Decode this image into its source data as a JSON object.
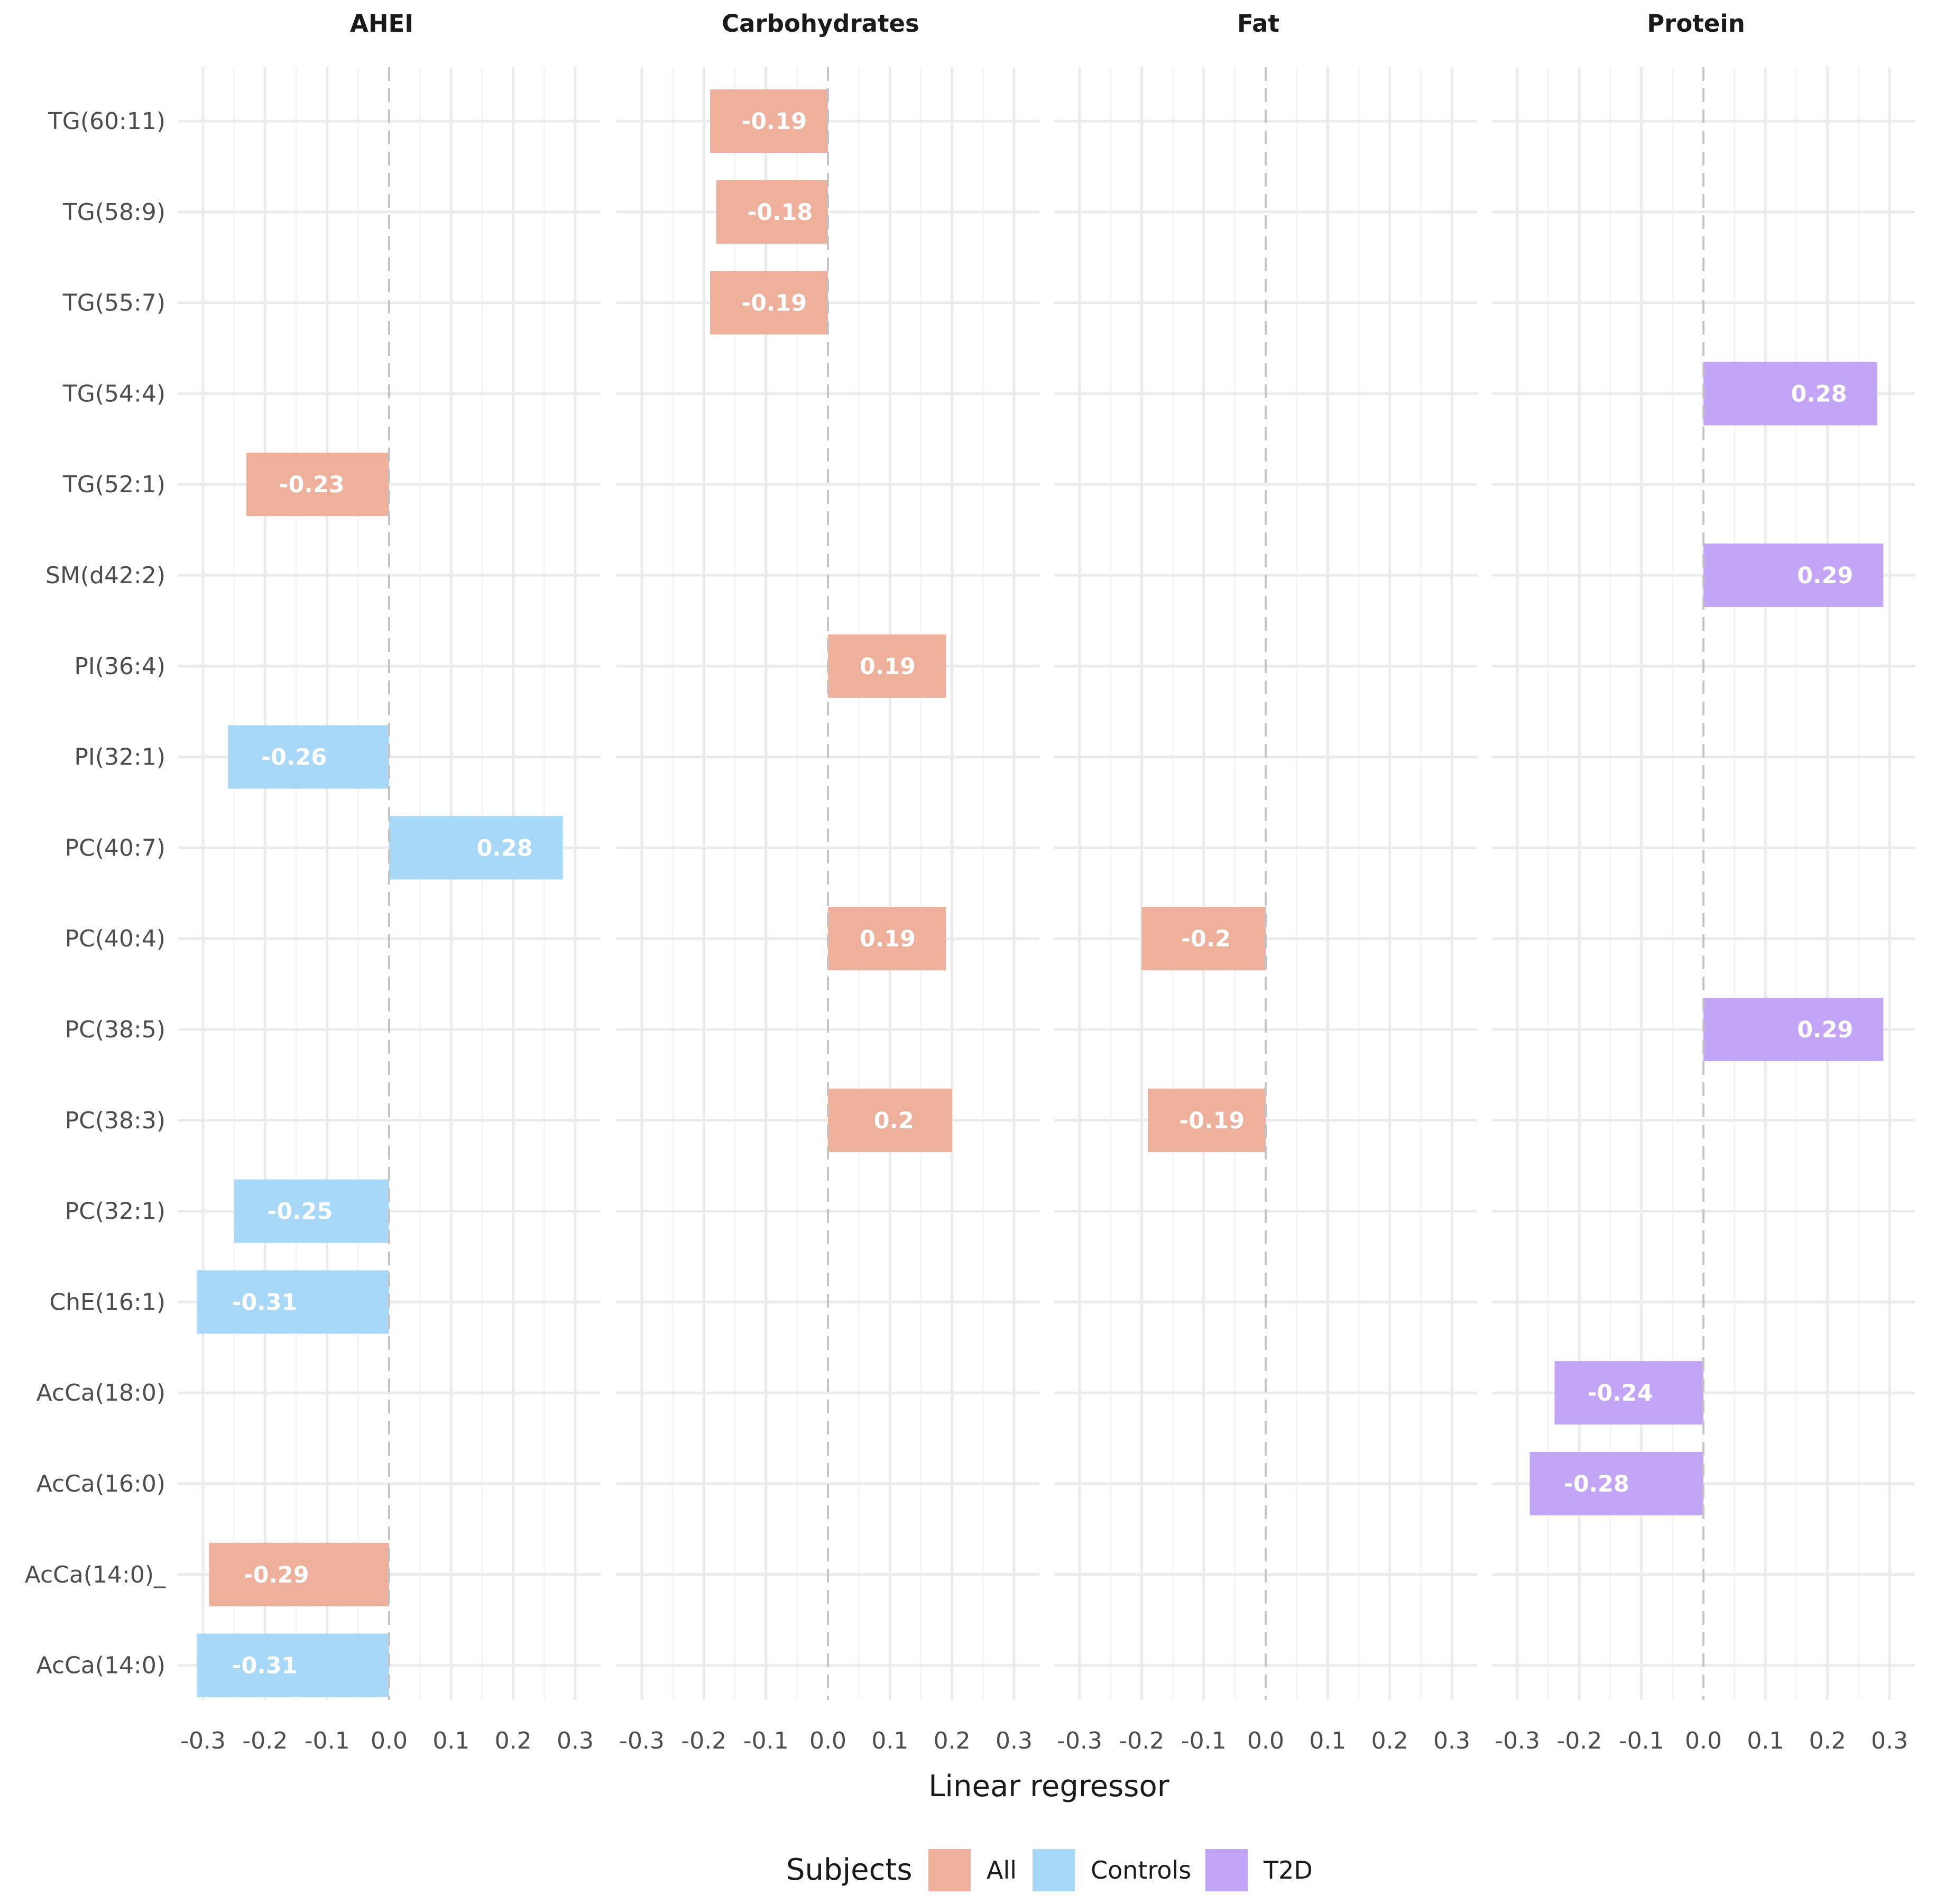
{
  "chart_data": {
    "type": "bar",
    "orientation": "horizontal",
    "facets": [
      "AHEI",
      "Carbohydrates",
      "Fat",
      "Protein"
    ],
    "categories": [
      "TG(60:11)",
      "TG(58:9)",
      "TG(55:7)",
      "TG(54:4)",
      "TG(52:1)",
      "SM(d42:2)",
      "PI(36:4)",
      "PI(32:1)",
      "PC(40:7)",
      "PC(40:4)",
      "PC(38:5)",
      "PC(38:3)",
      "PC(32:1)",
      "ChE(16:1)",
      "AcCa(18:0)",
      "AcCa(16:0)",
      "AcCa(14:0)_",
      "AcCa(14:0)"
    ],
    "x_ticks": [
      -0.3,
      -0.2,
      -0.1,
      0.0,
      0.1,
      0.2,
      0.3
    ],
    "x_tick_labels": [
      "-0.3",
      "-0.2",
      "-0.1",
      "0.0",
      "0.1",
      "0.2",
      "0.3"
    ],
    "xlim": [
      -0.3,
      0.3
    ],
    "xlabel": "Linear regressor",
    "ylabel": "",
    "grid": true,
    "legend": {
      "title": "Subjects",
      "position": "bottom",
      "items": [
        {
          "name": "All",
          "color": "#eeb09b"
        },
        {
          "name": "Controls",
          "color": "#a8d8f8"
        },
        {
          "name": "T2D",
          "color": "#c3a5f8"
        }
      ]
    },
    "bars": [
      {
        "facet": "AHEI",
        "category": "TG(52:1)",
        "value": -0.23,
        "label": "-0.23",
        "group": "All"
      },
      {
        "facet": "AHEI",
        "category": "PI(32:1)",
        "value": -0.26,
        "label": "-0.26",
        "group": "Controls"
      },
      {
        "facet": "AHEI",
        "category": "PC(40:7)",
        "value": 0.28,
        "label": "0.28",
        "group": "Controls"
      },
      {
        "facet": "AHEI",
        "category": "PC(32:1)",
        "value": -0.25,
        "label": "-0.25",
        "group": "Controls"
      },
      {
        "facet": "AHEI",
        "category": "ChE(16:1)",
        "value": -0.31,
        "label": "-0.31",
        "group": "Controls"
      },
      {
        "facet": "AHEI",
        "category": "AcCa(14:0)_",
        "value": -0.29,
        "label": "-0.29",
        "group": "All"
      },
      {
        "facet": "AHEI",
        "category": "AcCa(14:0)",
        "value": -0.31,
        "label": "-0.31",
        "group": "Controls"
      },
      {
        "facet": "Carbohydrates",
        "category": "TG(60:11)",
        "value": -0.19,
        "label": "-0.19",
        "group": "All"
      },
      {
        "facet": "Carbohydrates",
        "category": "TG(58:9)",
        "value": -0.18,
        "label": "-0.18",
        "group": "All"
      },
      {
        "facet": "Carbohydrates",
        "category": "TG(55:7)",
        "value": -0.19,
        "label": "-0.19",
        "group": "All"
      },
      {
        "facet": "Carbohydrates",
        "category": "PI(36:4)",
        "value": 0.19,
        "label": "0.19",
        "group": "All"
      },
      {
        "facet": "Carbohydrates",
        "category": "PC(40:4)",
        "value": 0.19,
        "label": "0.19",
        "group": "All"
      },
      {
        "facet": "Carbohydrates",
        "category": "PC(38:3)",
        "value": 0.2,
        "label": "0.2",
        "group": "All"
      },
      {
        "facet": "Fat",
        "category": "PC(40:4)",
        "value": -0.2,
        "label": "-0.2",
        "group": "All"
      },
      {
        "facet": "Fat",
        "category": "PC(38:3)",
        "value": -0.19,
        "label": "-0.19",
        "group": "All"
      },
      {
        "facet": "Protein",
        "category": "TG(54:4)",
        "value": 0.28,
        "label": "0.28",
        "group": "T2D"
      },
      {
        "facet": "Protein",
        "category": "SM(d42:2)",
        "value": 0.29,
        "label": "0.29",
        "group": "T2D"
      },
      {
        "facet": "Protein",
        "category": "PC(38:5)",
        "value": 0.29,
        "label": "0.29",
        "group": "T2D"
      },
      {
        "facet": "Protein",
        "category": "AcCa(18:0)",
        "value": -0.24,
        "label": "-0.24",
        "group": "T2D"
      },
      {
        "facet": "Protein",
        "category": "AcCa(16:0)",
        "value": -0.28,
        "label": "-0.28",
        "group": "T2D"
      }
    ]
  }
}
